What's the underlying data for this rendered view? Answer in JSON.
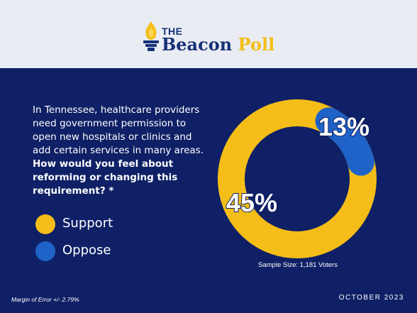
{
  "brand": {
    "the": "THE",
    "beacon": "Beacon",
    "poll": "Poll",
    "colors": {
      "navy": "#17317a",
      "gold": "#f5bd17"
    }
  },
  "question": {
    "plain": "In Tennessee, healthcare providers need government permission to open new hospitals or clinics and add certain services in many areas.",
    "bold": "How would you feel about reforming or changing this requirement? *"
  },
  "legend": [
    {
      "label": "Support",
      "color": "#f5bd17"
    },
    {
      "label": "Oppose",
      "color": "#1f63c8"
    }
  ],
  "chart_data": {
    "type": "pie",
    "categories": [
      "Support",
      "Oppose"
    ],
    "values": [
      45,
      13
    ],
    "labels": [
      "45%",
      "13%"
    ],
    "colors": [
      "#f5bd17",
      "#1f63c8"
    ]
  },
  "sample_size": "Sample Size: 1,181 Voters",
  "margin_of_error": "Margin of Error +/- 2.79%",
  "date": "OCTOBER 2023"
}
